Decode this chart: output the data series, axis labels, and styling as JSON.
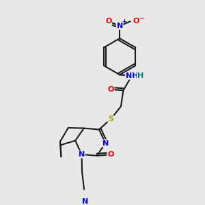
{
  "bg": "#e8e8e8",
  "bc": "#1a1a1a",
  "NC": "#0000ee",
  "OC": "#ee0000",
  "SC": "#aaaa00",
  "HC": "#008080",
  "lw": 1.5,
  "fs": 8.0,
  "xlim": [
    0.0,
    1.0
  ],
  "ylim": [
    0.0,
    1.0
  ]
}
